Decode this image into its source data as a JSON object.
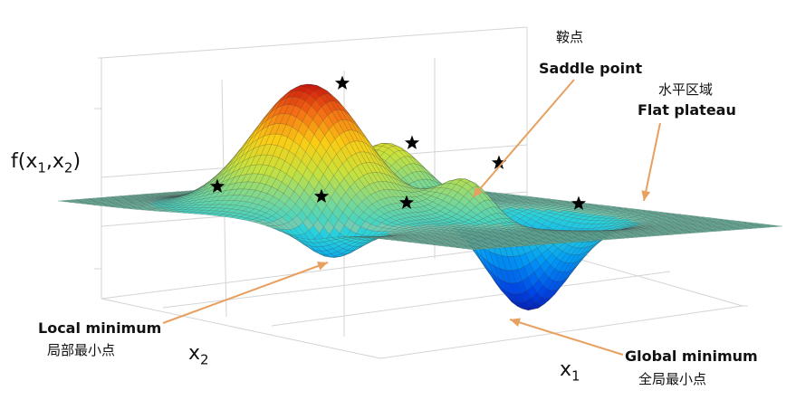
{
  "labels": {
    "saddle_cn": "鞍点",
    "saddle_en": "Saddle point",
    "plateau_cn": "水平区域",
    "plateau_en": "Flat plateau",
    "local_en": "Local minimum",
    "local_cn": "局部最小点",
    "global_en": "Global minimum",
    "global_cn": "全局最小点"
  },
  "axes": {
    "z_label": "f(x",
    "z_sub1": "1",
    "z_mid": ",x",
    "z_sub2": "2",
    "z_end": ")",
    "x2_label": "x",
    "x2_sub": "2",
    "x1_label": "x",
    "x1_sub": "1"
  },
  "colors": {
    "arrow": "#e8a060",
    "star": "#000000",
    "mesh_line": "#3a3a3a"
  }
}
